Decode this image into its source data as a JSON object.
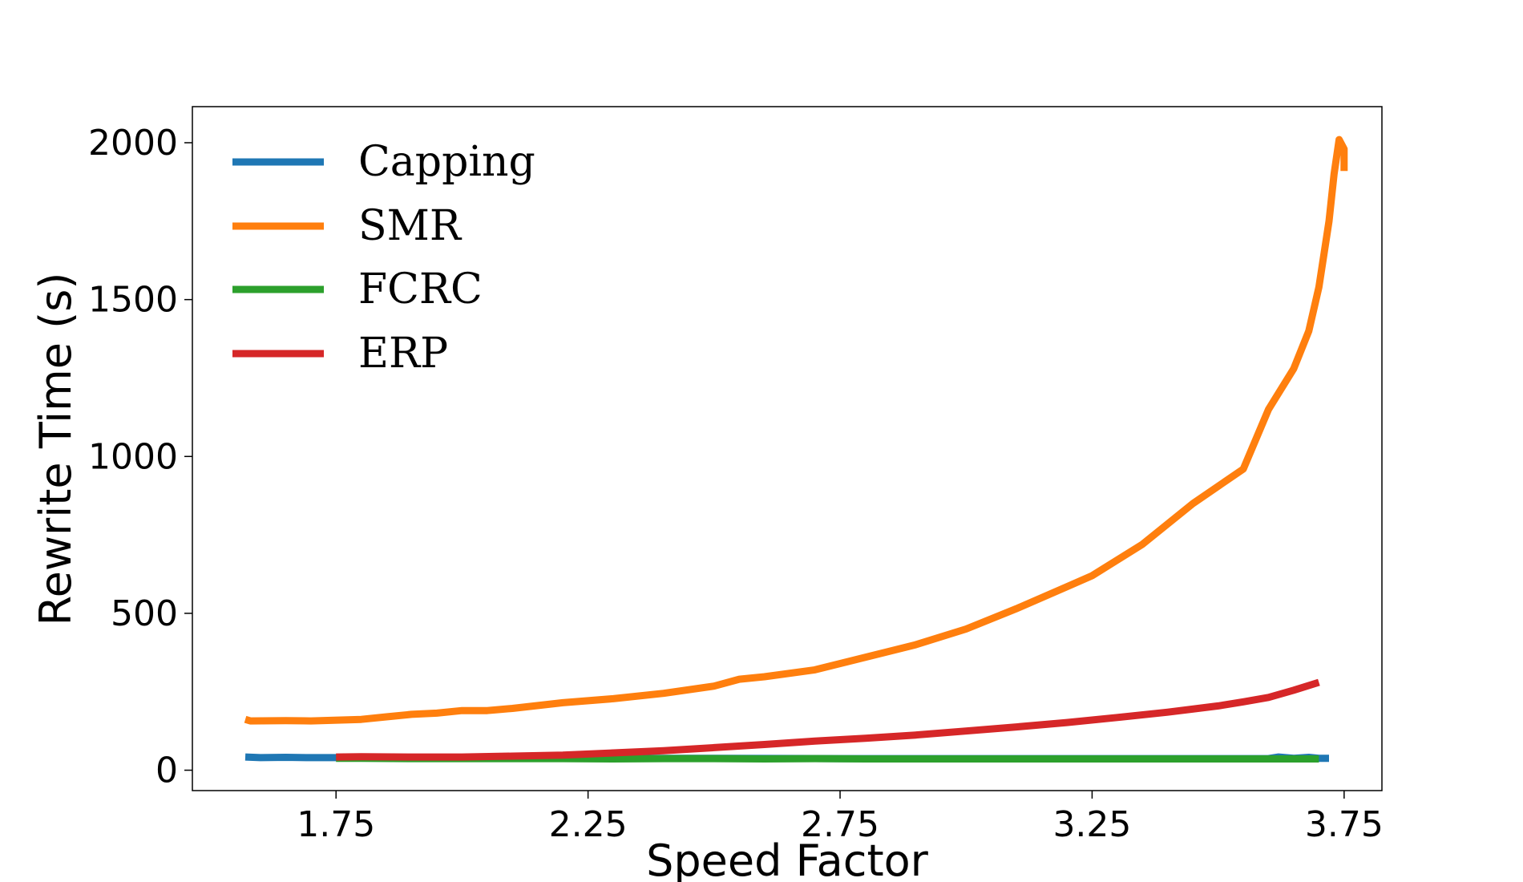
{
  "chart_data": {
    "type": "line",
    "title": "",
    "xlabel": "Speed Factor",
    "ylabel": "Rewrite Time (s)",
    "xlim": [
      1.465,
      3.825
    ],
    "ylim": [
      -65,
      2115
    ],
    "xticks": [
      "1.75",
      "2.25",
      "2.75",
      "3.25",
      "3.75"
    ],
    "yticks": [
      "0",
      "500",
      "1000",
      "1500",
      "2000"
    ],
    "grid": false,
    "legend_position": "top-left",
    "series": [
      {
        "name": "Capping",
        "color": "#1f77b4",
        "x": [
          1.57,
          1.6,
          1.65,
          1.7,
          1.75,
          1.8,
          1.9,
          2.0,
          2.25,
          2.5,
          2.75,
          3.0,
          3.25,
          3.5,
          3.6,
          3.62,
          3.65,
          3.68,
          3.7,
          3.72
        ],
        "y": [
          42,
          40,
          41,
          40,
          40,
          40,
          40,
          39,
          38,
          38,
          37,
          37,
          37,
          37,
          37,
          42,
          38,
          41,
          38,
          38
        ]
      },
      {
        "name": "SMR",
        "color": "#ff7f0e",
        "x": [
          1.57,
          1.58,
          1.65,
          1.7,
          1.8,
          1.85,
          1.9,
          1.95,
          2.0,
          2.05,
          2.1,
          2.2,
          2.3,
          2.4,
          2.5,
          2.55,
          2.6,
          2.7,
          2.8,
          2.9,
          3.0,
          3.1,
          3.2,
          3.25,
          3.35,
          3.45,
          3.55,
          3.6,
          3.65,
          3.68,
          3.7,
          3.72,
          3.73,
          3.74,
          3.75,
          3.75
        ],
        "y": [
          162,
          157,
          158,
          157,
          162,
          170,
          178,
          182,
          190,
          190,
          197,
          215,
          228,
          245,
          268,
          290,
          298,
          320,
          360,
          400,
          450,
          515,
          585,
          620,
          720,
          850,
          960,
          1150,
          1280,
          1400,
          1540,
          1750,
          1900,
          2010,
          1980,
          1910
        ]
      },
      {
        "name": "FCRC",
        "color": "#2ca02c",
        "x": [
          1.75,
          1.8,
          1.9,
          2.0,
          2.1,
          2.2,
          2.3,
          2.4,
          2.5,
          2.6,
          2.7,
          2.8,
          2.9,
          3.0,
          3.1,
          3.2,
          3.3,
          3.4,
          3.5,
          3.6,
          3.7
        ],
        "y": [
          38,
          38,
          37,
          37,
          37,
          37,
          36,
          37,
          37,
          36,
          37,
          36,
          36,
          36,
          36,
          36,
          36,
          36,
          36,
          36,
          36
        ]
      },
      {
        "name": "ERP",
        "color": "#d62728",
        "x": [
          1.75,
          1.8,
          1.9,
          2.0,
          2.1,
          2.2,
          2.3,
          2.4,
          2.5,
          2.6,
          2.7,
          2.8,
          2.9,
          3.0,
          3.1,
          3.2,
          3.3,
          3.4,
          3.5,
          3.55,
          3.6,
          3.65,
          3.7
        ],
        "y": [
          42,
          43,
          42,
          42,
          45,
          48,
          55,
          62,
          72,
          82,
          93,
          102,
          112,
          125,
          138,
          152,
          168,
          185,
          205,
          218,
          232,
          255,
          280
        ]
      }
    ]
  }
}
